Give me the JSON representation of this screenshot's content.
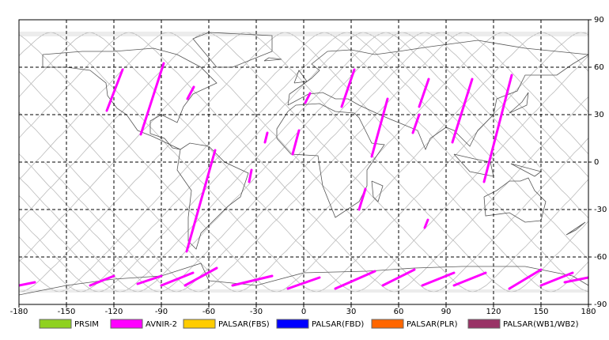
{
  "chart_data": {
    "type": "map",
    "xlim": [
      -180,
      180
    ],
    "ylim": [
      -90,
      90
    ],
    "xticks": [
      -180,
      -150,
      -120,
      -90,
      -60,
      -30,
      0,
      30,
      60,
      90,
      120,
      150,
      180
    ],
    "yticks": [
      90,
      60,
      30,
      0,
      -30,
      -60,
      -90
    ],
    "grid": true,
    "series": [
      {
        "name": "PRSIM",
        "color": "#8fd11f"
      },
      {
        "name": "AVNIR-2",
        "color": "#ff00ff",
        "tracks": [
          {
            "lon": [
              -124.5,
              -114.5
            ],
            "lat": [
              32.5,
              58.5
            ]
          },
          {
            "lon": [
              -103,
              -88.5
            ],
            "lat": [
              17.5,
              62.5
            ]
          },
          {
            "lon": [
              -73.5,
              -69.5
            ],
            "lat": [
              40,
              47.5
            ]
          },
          {
            "lon": [
              -74,
              -56
            ],
            "lat": [
              -56.5,
              7.5
            ]
          },
          {
            "lon": [
              -34.5,
              -33
            ],
            "lat": [
              -12.5,
              -5
            ]
          },
          {
            "lon": [
              -24.5,
              -23
            ],
            "lat": [
              12.5,
              18.5
            ]
          },
          {
            "lon": [
              -7,
              -3
            ],
            "lat": [
              5,
              20
            ]
          },
          {
            "lon": [
              1,
              4
            ],
            "lat": [
              37.5,
              43.5
            ]
          },
          {
            "lon": [
              24,
              32
            ],
            "lat": [
              35,
              58.5
            ]
          },
          {
            "lon": [
              43,
              53
            ],
            "lat": [
              3.5,
              40
            ]
          },
          {
            "lon": [
              35,
              39
            ],
            "lat": [
              -30,
              -17
            ]
          },
          {
            "lon": [
              69,
              73
            ],
            "lat": [
              18.5,
              30
            ]
          },
          {
            "lon": [
              73,
              79
            ],
            "lat": [
              35,
              52.5
            ]
          },
          {
            "lon": [
              76.5,
              78.5
            ],
            "lat": [
              -41.5,
              -36.5
            ]
          },
          {
            "lon": [
              94,
              106.5
            ],
            "lat": [
              12.5,
              52.5
            ]
          },
          {
            "lon": [
              114,
              131.5
            ],
            "lat": [
              -12.5,
              55
            ]
          },
          {
            "lon": [
              -180,
              -170
            ],
            "lat": [
              -78,
              -76
            ]
          },
          {
            "lon": [
              -135,
              -120
            ],
            "lat": [
              -78,
              -72
            ]
          },
          {
            "lon": [
              -105,
              -90
            ],
            "lat": [
              -77,
              -72
            ]
          },
          {
            "lon": [
              -90,
              -70
            ],
            "lat": [
              -78,
              -70
            ]
          },
          {
            "lon": [
              -75,
              -55
            ],
            "lat": [
              -78,
              -67
            ]
          },
          {
            "lon": [
              -45,
              -20
            ],
            "lat": [
              -78,
              -72
            ]
          },
          {
            "lon": [
              -10,
              10
            ],
            "lat": [
              -80,
              -73
            ]
          },
          {
            "lon": [
              20,
              45
            ],
            "lat": [
              -80,
              -69
            ]
          },
          {
            "lon": [
              50,
              70
            ],
            "lat": [
              -78,
              -68
            ]
          },
          {
            "lon": [
              75,
              95
            ],
            "lat": [
              -78,
              -70
            ]
          },
          {
            "lon": [
              95,
              115
            ],
            "lat": [
              -78,
              -70
            ]
          },
          {
            "lon": [
              130,
              150
            ],
            "lat": [
              -80,
              -68
            ]
          },
          {
            "lon": [
              150,
              170
            ],
            "lat": [
              -78,
              -70
            ]
          },
          {
            "lon": [
              165,
              180
            ],
            "lat": [
              -76,
              -73
            ]
          }
        ]
      },
      {
        "name": "PALSAR(FBS)",
        "color": "#ffcc00"
      },
      {
        "name": "PALSAR(FBD)",
        "color": "#0000ff"
      },
      {
        "name": "PALSAR(PLR)",
        "color": "#ff6600"
      },
      {
        "name": "PALSAR(WB1/WB2)",
        "color": "#993366"
      }
    ]
  }
}
